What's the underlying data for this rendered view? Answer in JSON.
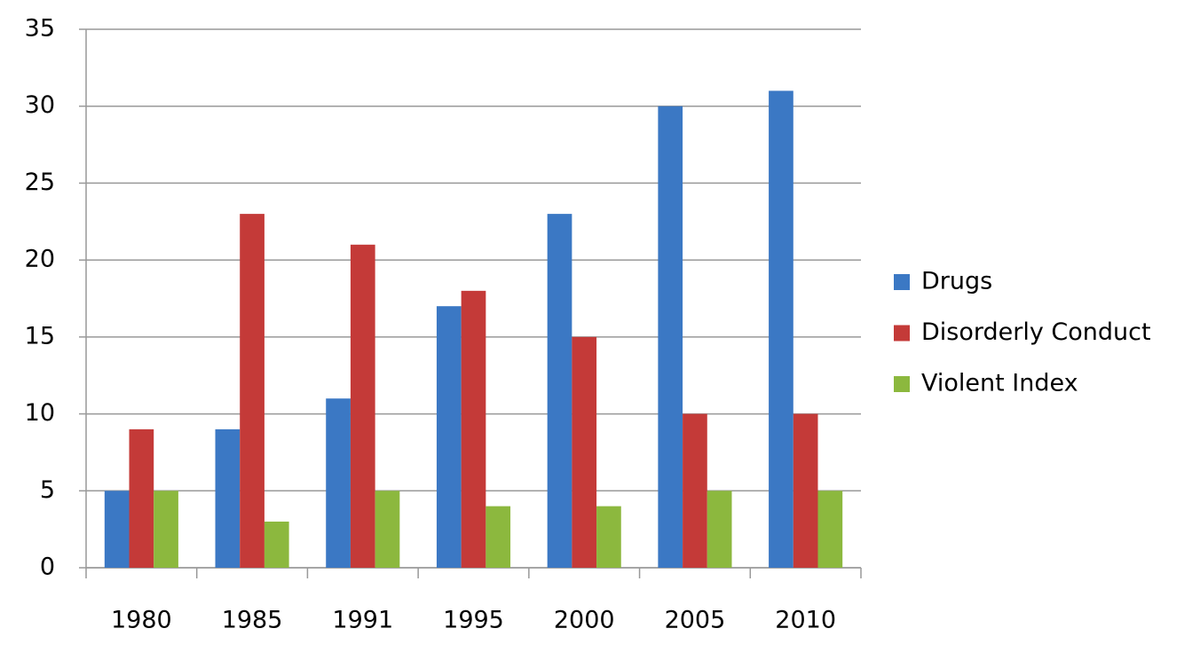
{
  "chart_data": {
    "type": "bar",
    "categories": [
      "1980",
      "1985",
      "1991",
      "1995",
      "2000",
      "2005",
      "2010"
    ],
    "series": [
      {
        "name": "Drugs",
        "color": "#3b78c4",
        "values": [
          5,
          9,
          11,
          17,
          23,
          30,
          31
        ]
      },
      {
        "name": "Disorderly Conduct",
        "color": "#c43a38",
        "values": [
          9,
          23,
          21,
          18,
          15,
          10,
          10
        ]
      },
      {
        "name": "Violent Index",
        "color": "#8cb83e",
        "values": [
          5,
          3,
          5,
          4,
          4,
          5,
          5
        ]
      }
    ],
    "ylim": [
      0,
      35
    ],
    "yticks": [
      0,
      5,
      10,
      15,
      20,
      25,
      30,
      35
    ],
    "grid": true,
    "legend": "right"
  }
}
